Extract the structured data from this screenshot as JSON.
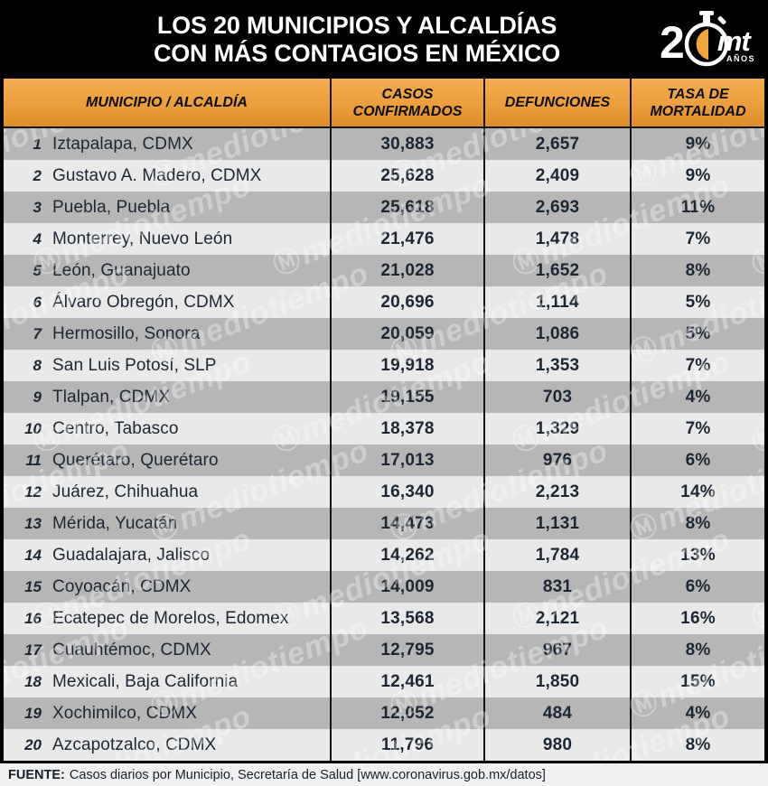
{
  "header": {
    "title_line1": "LOS 20 MUNICIPIOS Y ALCALDÍAS",
    "title_line2": "CON MÁS CONTAGIOS EN MÉXICO",
    "logo": {
      "prefix": "2",
      "brand": "mt",
      "suffix": "AÑOS"
    }
  },
  "table": {
    "columns": [
      "MUNICIPIO / ALCALDÍA",
      "CASOS\nCONFIRMADOS",
      "DEFUNCIONES",
      "TASA DE\nMORTALIDAD"
    ],
    "rows": [
      {
        "rank": "1",
        "municipio": "Iztapalapa, CDMX",
        "casos": "30,883",
        "defunciones": "2,657",
        "tasa": "9%"
      },
      {
        "rank": "2",
        "municipio": "Gustavo A. Madero, CDMX",
        "casos": "25,628",
        "defunciones": "2,409",
        "tasa": "9%"
      },
      {
        "rank": "3",
        "municipio": "Puebla, Puebla",
        "casos": "25,618",
        "defunciones": "2,693",
        "tasa": "11%"
      },
      {
        "rank": "4",
        "municipio": "Monterrey, Nuevo León",
        "casos": "21,476",
        "defunciones": "1,478",
        "tasa": "7%"
      },
      {
        "rank": "5",
        "municipio": "León, Guanajuato",
        "casos": "21,028",
        "defunciones": "1,652",
        "tasa": "8%"
      },
      {
        "rank": "6",
        "municipio": "Álvaro Obregón, CDMX",
        "casos": "20,696",
        "defunciones": "1,114",
        "tasa": "5%"
      },
      {
        "rank": "7",
        "municipio": "Hermosillo, Sonora",
        "casos": "20,059",
        "defunciones": "1,086",
        "tasa": "5%"
      },
      {
        "rank": "8",
        "municipio": "San Luis Potosí, SLP",
        "casos": "19,918",
        "defunciones": "1,353",
        "tasa": "7%"
      },
      {
        "rank": "9",
        "municipio": "Tlalpan, CDMX",
        "casos": "19,155",
        "defunciones": "703",
        "tasa": "4%"
      },
      {
        "rank": "10",
        "municipio": "Centro, Tabasco",
        "casos": "18,378",
        "defunciones": "1,329",
        "tasa": "7%"
      },
      {
        "rank": "11",
        "municipio": "Querétaro, Querétaro",
        "casos": "17,013",
        "defunciones": "976",
        "tasa": "6%"
      },
      {
        "rank": "12",
        "municipio": "Juárez, Chihuahua",
        "casos": "16,340",
        "defunciones": "2,213",
        "tasa": "14%"
      },
      {
        "rank": "13",
        "municipio": "Mérida, Yucatán",
        "casos": "14,473",
        "defunciones": "1,131",
        "tasa": "8%"
      },
      {
        "rank": "14",
        "municipio": "Guadalajara, Jalisco",
        "casos": "14,262",
        "defunciones": "1,784",
        "tasa": "13%"
      },
      {
        "rank": "15",
        "municipio": "Coyoacán, CDMX",
        "casos": "14,009",
        "defunciones": "831",
        "tasa": "6%"
      },
      {
        "rank": "16",
        "municipio": "Ecatepec de Morelos, Edomex",
        "casos": "13,568",
        "defunciones": "2,121",
        "tasa": "16%"
      },
      {
        "rank": "17",
        "municipio": "Cuauhtémoc, CDMX",
        "casos": "12,795",
        "defunciones": "967",
        "tasa": "8%"
      },
      {
        "rank": "18",
        "municipio": "Mexicali, Baja California",
        "casos": "12,461",
        "defunciones": "1,850",
        "tasa": "15%"
      },
      {
        "rank": "19",
        "municipio": "Xochimilco, CDMX",
        "casos": "12,052",
        "defunciones": "484",
        "tasa": "4%"
      },
      {
        "rank": "20",
        "municipio": "Azcapotzalco, CDMX",
        "casos": "11,796",
        "defunciones": "980",
        "tasa": "8%"
      }
    ]
  },
  "watermark": "mediotiempo",
  "footer": {
    "label": "FUENTE:",
    "text": "Casos diarios por Municipio, Secretaría de Salud [www.coronavirus.gob.mx/datos]"
  },
  "colors": {
    "header_bg": "#000000",
    "accent_orange_top": "#f4ad52",
    "accent_orange_bottom": "#de8d2b",
    "logo_orange": "#f0a43c",
    "row_dark": "#b6b6b6",
    "row_light": "#e9e9e9",
    "text_dark": "#1d2733",
    "footer_bg": "#f0f0f0"
  },
  "chart_data": {
    "type": "table",
    "title": "LOS 20 MUNICIPIOS Y ALCALDÍAS CON MÁS CONTAGIOS EN MÉXICO",
    "columns": [
      "MUNICIPIO / ALCALDÍA",
      "CASOS CONFIRMADOS",
      "DEFUNCIONES",
      "TASA DE MORTALIDAD"
    ],
    "rows": [
      [
        "Iztapalapa, CDMX",
        30883,
        2657,
        "9%"
      ],
      [
        "Gustavo A. Madero, CDMX",
        25628,
        2409,
        "9%"
      ],
      [
        "Puebla, Puebla",
        25618,
        2693,
        "11%"
      ],
      [
        "Monterrey, Nuevo León",
        21476,
        1478,
        "7%"
      ],
      [
        "León, Guanajuato",
        21028,
        1652,
        "8%"
      ],
      [
        "Álvaro Obregón, CDMX",
        20696,
        1114,
        "5%"
      ],
      [
        "Hermosillo, Sonora",
        20059,
        1086,
        "5%"
      ],
      [
        "San Luis Potosí, SLP",
        19918,
        1353,
        "7%"
      ],
      [
        "Tlalpan, CDMX",
        19155,
        703,
        "4%"
      ],
      [
        "Centro, Tabasco",
        18378,
        1329,
        "7%"
      ],
      [
        "Querétaro, Querétaro",
        17013,
        976,
        "6%"
      ],
      [
        "Juárez, Chihuahua",
        16340,
        2213,
        "14%"
      ],
      [
        "Mérida, Yucatán",
        14473,
        1131,
        "8%"
      ],
      [
        "Guadalajara, Jalisco",
        14262,
        1784,
        "13%"
      ],
      [
        "Coyoacán, CDMX",
        14009,
        831,
        "6%"
      ],
      [
        "Ecatepec de Morelos, Edomex",
        13568,
        2121,
        "16%"
      ],
      [
        "Cuauhtémoc, CDMX",
        12795,
        967,
        "8%"
      ],
      [
        "Mexicali, Baja California",
        12461,
        1850,
        "15%"
      ],
      [
        "Xochimilco, CDMX",
        12052,
        484,
        "4%"
      ],
      [
        "Azcapotzalco, CDMX",
        11796,
        980,
        "8%"
      ]
    ],
    "source": "FUENTE: Casos diarios por Municipio, Secretaría de Salud [www.coronavirus.gob.mx/datos]"
  }
}
